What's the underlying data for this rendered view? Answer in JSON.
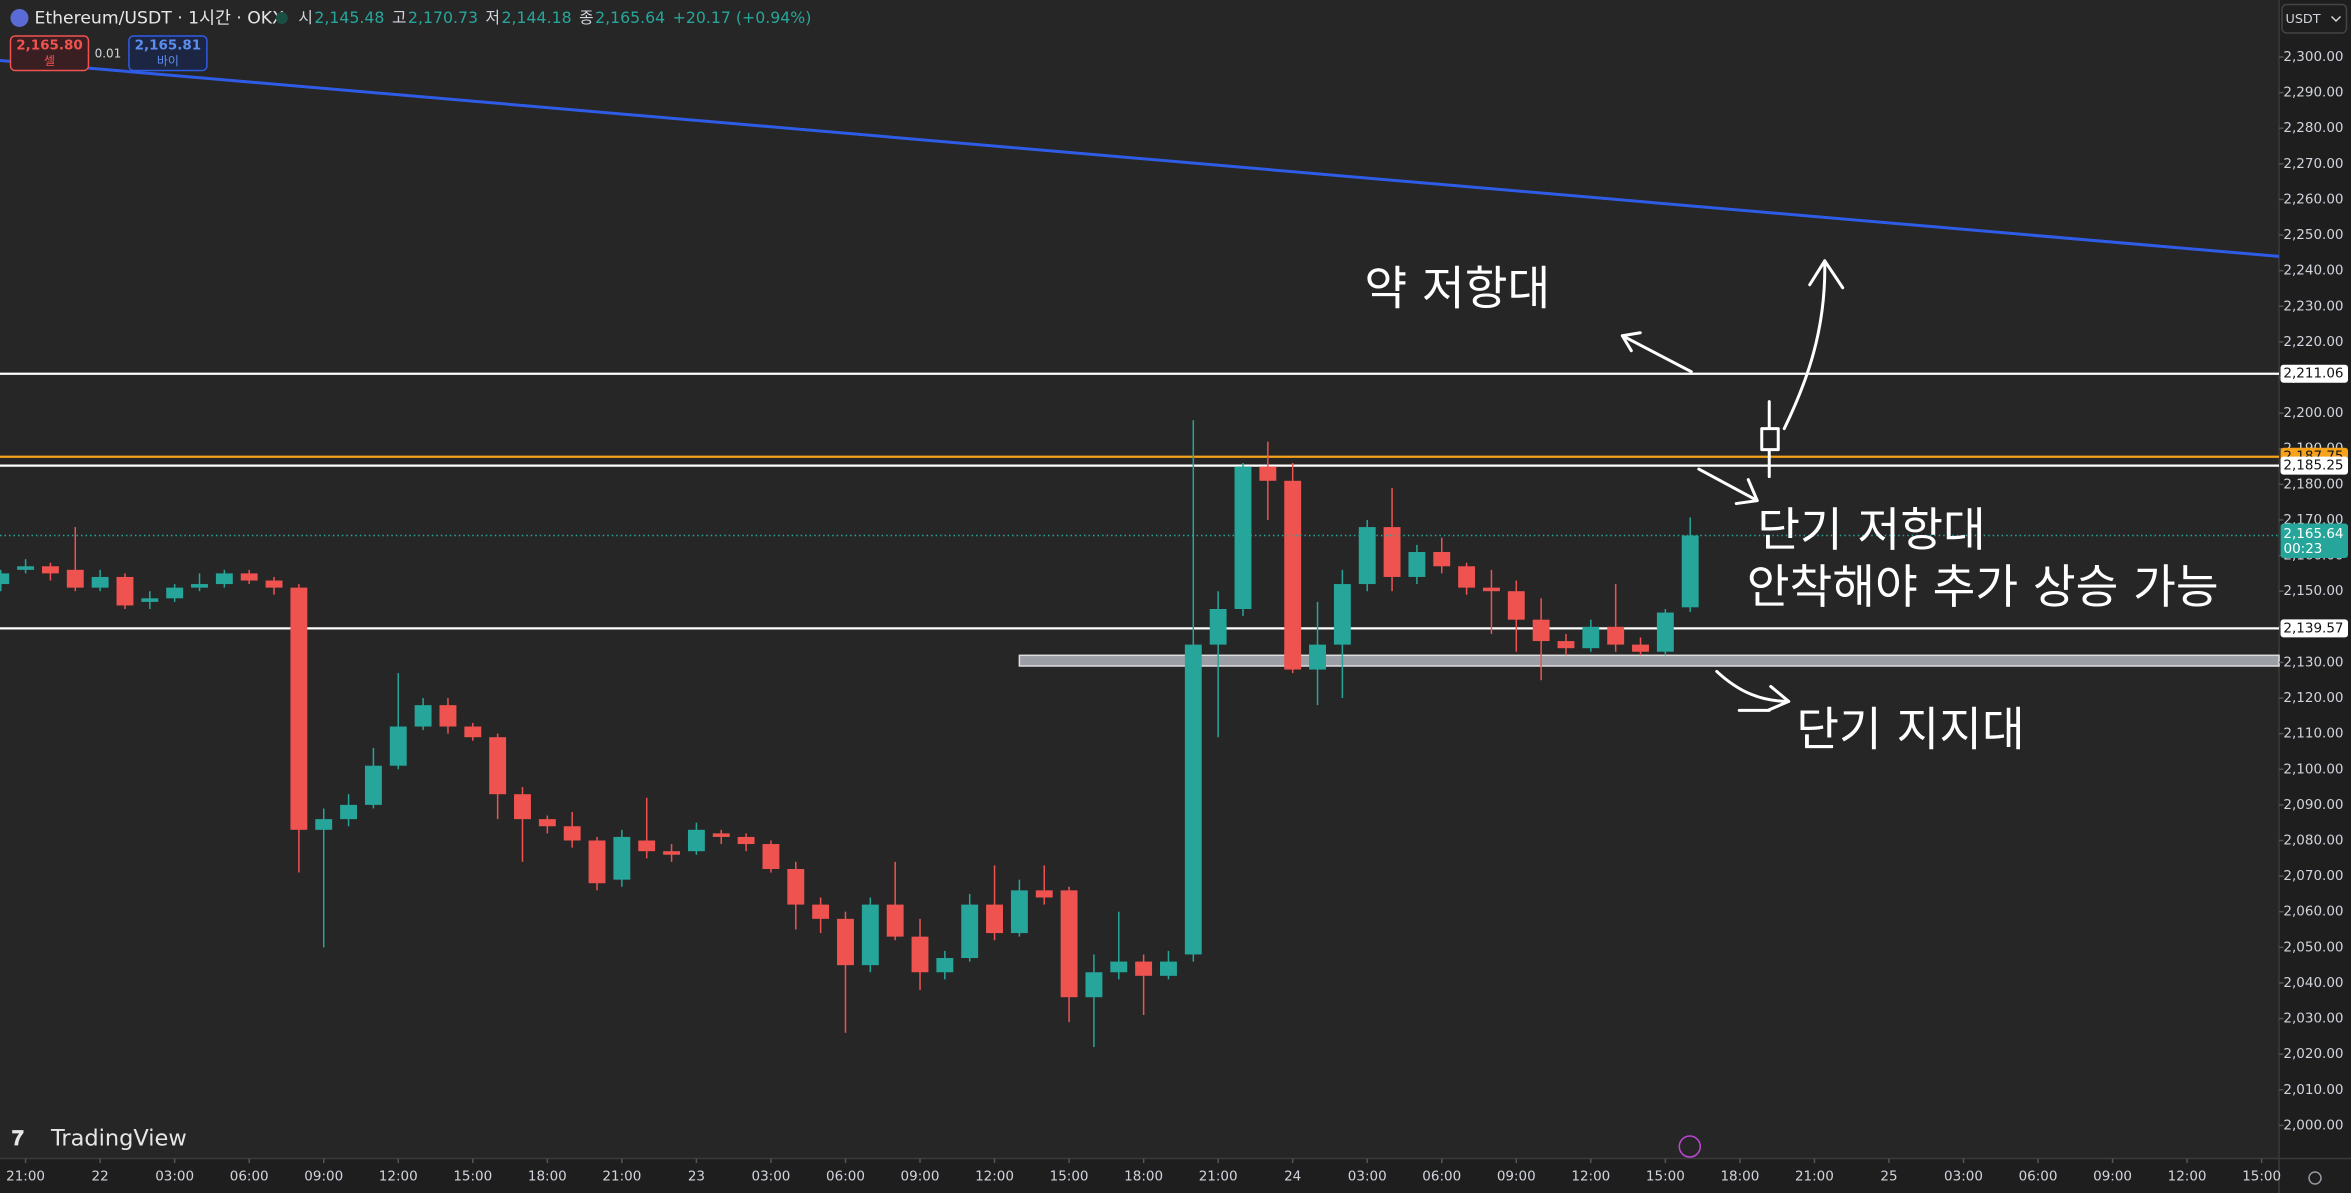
{
  "header": {
    "symbol": "Ethereum/USDT · 1시간 · OKX",
    "o_label": "시",
    "o": "2,145.48",
    "h_label": "고",
    "h": "2,170.73",
    "l_label": "저",
    "l": "2,144.18",
    "c_label": "종",
    "c": "2,165.64",
    "change": "+20.17 (+0.94%)"
  },
  "trade": {
    "sell_price": "2,165.80",
    "sell_label": "셀",
    "qty": "0.01",
    "buy_price": "2,165.81",
    "buy_label": "바이"
  },
  "currency": "USDT",
  "logo": "TradingView",
  "countdown": "00:23",
  "chart_data": {
    "type": "candlestick",
    "up_color": "#26a69a",
    "down_color": "#ef5350",
    "x": [
      -1,
      0,
      1,
      2,
      3,
      4,
      5,
      6,
      7,
      8,
      9,
      10,
      11,
      12,
      13,
      14,
      15,
      16,
      17,
      18,
      19,
      20,
      21,
      22,
      23,
      24,
      25,
      26,
      27,
      28,
      29,
      30,
      31,
      32,
      33,
      34,
      35,
      36,
      37,
      38,
      39,
      40,
      41,
      42,
      43,
      44,
      45,
      46,
      47,
      48,
      49,
      50,
      51,
      52,
      53,
      54,
      55,
      56,
      57,
      58,
      59,
      60,
      61,
      62,
      63,
      64,
      65,
      66,
      67
    ],
    "open": [
      2152,
      2156,
      2157,
      2156,
      2151,
      2154,
      2147,
      2148,
      2151,
      2152,
      2155,
      2153,
      2151,
      2083,
      2086,
      2090,
      2101,
      2112,
      2118,
      2112,
      2109,
      2093,
      2086,
      2084,
      2080,
      2069,
      2080,
      2077,
      2077,
      2082,
      2081,
      2079,
      2072,
      2062,
      2058,
      2045,
      2062,
      2053,
      2043,
      2047,
      2062,
      2054,
      2066,
      2066,
      2036,
      2043,
      2046,
      2042,
      2048,
      2135,
      2145,
      2185,
      2181,
      2128,
      2135,
      2152,
      2168,
      2154,
      2161,
      2157,
      2151,
      2150,
      2142,
      2136,
      2134,
      2140,
      2135,
      2133,
      2145.48
    ],
    "high": [
      2156,
      2159,
      2158,
      2168,
      2156,
      2155,
      2150,
      2152,
      2155,
      2156,
      2156,
      2154,
      2152,
      2089,
      2093,
      2106,
      2127,
      2120,
      2120,
      2113,
      2110,
      2095,
      2087,
      2088,
      2081,
      2083,
      2092,
      2079,
      2085,
      2083,
      2082,
      2080,
      2074,
      2064,
      2060,
      2064,
      2074,
      2058,
      2049,
      2065,
      2073,
      2069,
      2073,
      2067,
      2048,
      2060,
      2048,
      2049,
      2198,
      2150,
      2186,
      2192,
      2186,
      2147,
      2156,
      2170,
      2179,
      2163,
      2165,
      2158,
      2156,
      2153,
      2148,
      2138,
      2142,
      2152,
      2137,
      2145,
      2170.73
    ],
    "low": [
      2150,
      2155,
      2153,
      2150,
      2150,
      2145,
      2145,
      2147,
      2150,
      2151,
      2152,
      2149,
      2071,
      2050,
      2084,
      2089,
      2100,
      2111,
      2110,
      2108,
      2086,
      2074,
      2082,
      2078,
      2066,
      2067,
      2075,
      2074,
      2076,
      2079,
      2077,
      2071,
      2055,
      2054,
      2026,
      2043,
      2052,
      2038,
      2041,
      2046,
      2052,
      2053,
      2062,
      2029,
      2022,
      2041,
      2031,
      2041,
      2046,
      2109,
      2143,
      2170,
      2127,
      2118,
      2120,
      2150,
      2150,
      2152,
      2155,
      2149,
      2138,
      2133,
      2125,
      2132,
      2133,
      2133,
      2132,
      2132,
      2144.18
    ],
    "close": [
      2155,
      2157,
      2155,
      2151,
      2154,
      2146,
      2148,
      2151,
      2152,
      2155,
      2153,
      2151,
      2083,
      2086,
      2090,
      2101,
      2112,
      2118,
      2112,
      2109,
      2093,
      2086,
      2084,
      2080,
      2068,
      2081,
      2077,
      2076,
      2083,
      2081,
      2079,
      2072,
      2062,
      2058,
      2045,
      2062,
      2053,
      2043,
      2047,
      2062,
      2054,
      2066,
      2064,
      2036,
      2043,
      2046,
      2042,
      2046,
      2135,
      2145,
      2185,
      2181,
      2128,
      2135,
      2152,
      2168,
      2154,
      2161,
      2157,
      2151,
      2150,
      2142,
      2136,
      2134,
      2140,
      2135,
      2133,
      2144,
      2165.64
    ],
    "last_price": {
      "value": 2165.64,
      "label": "2,165.64"
    },
    "xlim": [
      -1.03,
      90.7
    ],
    "ylim": [
      1990.7,
      2316
    ],
    "xticks": [
      {
        "value": 0,
        "label": "21:00"
      },
      {
        "value": 3,
        "label": "22"
      },
      {
        "value": 6,
        "label": "03:00"
      },
      {
        "value": 9,
        "label": "06:00"
      },
      {
        "value": 12,
        "label": "09:00"
      },
      {
        "value": 15,
        "label": "12:00"
      },
      {
        "value": 18,
        "label": "15:00"
      },
      {
        "value": 21,
        "label": "18:00"
      },
      {
        "value": 24,
        "label": "21:00"
      },
      {
        "value": 27,
        "label": "23"
      },
      {
        "value": 30,
        "label": "03:00"
      },
      {
        "value": 33,
        "label": "06:00"
      },
      {
        "value": 36,
        "label": "09:00"
      },
      {
        "value": 39,
        "label": "12:00"
      },
      {
        "value": 42,
        "label": "15:00"
      },
      {
        "value": 45,
        "label": "18:00"
      },
      {
        "value": 48,
        "label": "21:00"
      },
      {
        "value": 51,
        "label": "24"
      },
      {
        "value": 54,
        "label": "03:00"
      },
      {
        "value": 57,
        "label": "06:00"
      },
      {
        "value": 60,
        "label": "09:00"
      },
      {
        "value": 63,
        "label": "12:00"
      },
      {
        "value": 66,
        "label": "15:00"
      },
      {
        "value": 69,
        "label": "18:00"
      },
      {
        "value": 72,
        "label": "21:00"
      },
      {
        "value": 75,
        "label": "25"
      },
      {
        "value": 78,
        "label": "03:00"
      },
      {
        "value": 81,
        "label": "06:00"
      },
      {
        "value": 84,
        "label": "09:00"
      },
      {
        "value": 87,
        "label": "12:00"
      },
      {
        "value": 90,
        "label": "15:00"
      }
    ],
    "yticks": [
      {
        "value": 2000,
        "label": "2,000.00"
      },
      {
        "value": 2010,
        "label": "2,010.00"
      },
      {
        "value": 2020,
        "label": "2,020.00"
      },
      {
        "value": 2030,
        "label": "2,030.00"
      },
      {
        "value": 2040,
        "label": "2,040.00"
      },
      {
        "value": 2050,
        "label": "2,050.00"
      },
      {
        "value": 2060,
        "label": "2,060.00"
      },
      {
        "value": 2070,
        "label": "2,070.00"
      },
      {
        "value": 2080,
        "label": "2,080.00"
      },
      {
        "value": 2090,
        "label": "2,090.00"
      },
      {
        "value": 2100,
        "label": "2,100.00"
      },
      {
        "value": 2110,
        "label": "2,110.00"
      },
      {
        "value": 2120,
        "label": "2,120.00"
      },
      {
        "value": 2130,
        "label": "2,130.00"
      },
      {
        "value": 2140,
        "label": "2,140.00"
      },
      {
        "value": 2150,
        "label": "2,150.00"
      },
      {
        "value": 2160,
        "label": "2,160.00"
      },
      {
        "value": 2170,
        "label": "2,170.00"
      },
      {
        "value": 2180,
        "label": "2,180.00"
      },
      {
        "value": 2190,
        "label": "2,190.00"
      },
      {
        "value": 2200,
        "label": "2,200.00"
      },
      {
        "value": 2210,
        "label": "2,210.00"
      },
      {
        "value": 2220,
        "label": "2,220.00"
      },
      {
        "value": 2230,
        "label": "2,230.00"
      },
      {
        "value": 2240,
        "label": "2,240.00"
      },
      {
        "value": 2250,
        "label": "2,250.00"
      },
      {
        "value": 2260,
        "label": "2,260.00"
      },
      {
        "value": 2270,
        "label": "2,270.00"
      },
      {
        "value": 2280,
        "label": "2,280.00"
      },
      {
        "value": 2290,
        "label": "2,290.00"
      },
      {
        "value": 2300,
        "label": "2,300.00"
      }
    ],
    "levels": [
      {
        "value": 2211.06,
        "label": "2,211.06",
        "color": "#ffffff"
      },
      {
        "value": 2187.75,
        "label": "2,187.75",
        "color": "#f7a21b"
      },
      {
        "value": 2185.25,
        "label": "2,185.25",
        "color": "#ffffff"
      },
      {
        "value": 2139.57,
        "label": "2,139.57",
        "color": "#ffffff"
      }
    ],
    "zone": {
      "x": [
        40,
        90.7
      ],
      "values": [
        2132,
        2129
      ],
      "color": "#b2b5be"
    },
    "trendline": {
      "x": [
        -1.03,
        90.7
      ],
      "values": [
        2299,
        2244
      ],
      "color": "#2e5ce6"
    },
    "annotations": [
      "약 저항대",
      "단기 저항대",
      "안착해야 추가 상승 가능",
      "단기 지지대"
    ]
  }
}
